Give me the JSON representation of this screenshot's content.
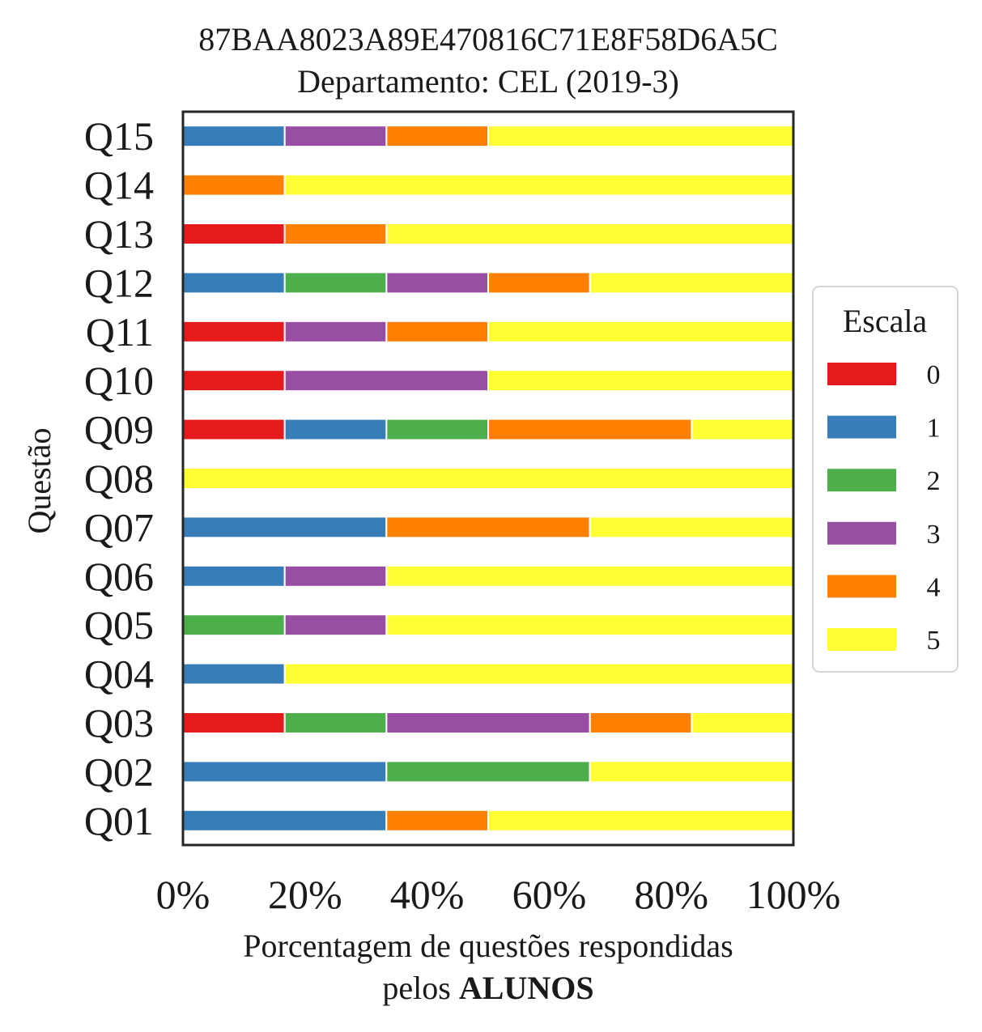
{
  "chart_data": {
    "type": "bar",
    "orientation": "horizontal",
    "stacked": true,
    "title_line1": "87BAA8023A89E470816C71E8F58D6A5C",
    "title_line2": "Departamento: CEL (2019-3)",
    "ylabel": "Questão",
    "xlabel_line1": "Porcentagem de questões respondidas",
    "xlabel_line2_prefix": "pelos ",
    "xlabel_line2_bold": "ALUNOS",
    "xlim": [
      0,
      100
    ],
    "xticks": [
      "0%",
      "20%",
      "40%",
      "60%",
      "80%",
      "100%"
    ],
    "xtick_values": [
      0,
      20,
      40,
      60,
      80,
      100
    ],
    "categories": [
      "Q01",
      "Q02",
      "Q03",
      "Q04",
      "Q05",
      "Q06",
      "Q07",
      "Q08",
      "Q09",
      "Q10",
      "Q11",
      "Q12",
      "Q13",
      "Q14",
      "Q15"
    ],
    "grid": false,
    "legend": {
      "title": "Escala",
      "placement": "right-center"
    },
    "series": [
      {
        "name": "0",
        "color": "#e41a1c",
        "values": [
          0,
          0,
          16.67,
          0,
          0,
          0,
          0,
          0,
          16.67,
          16.67,
          16.67,
          0,
          16.67,
          0,
          0
        ]
      },
      {
        "name": "1",
        "color": "#377eb8",
        "values": [
          33.33,
          33.33,
          0,
          16.67,
          0,
          16.67,
          33.33,
          0,
          16.67,
          0,
          0,
          16.67,
          0,
          0,
          16.67
        ]
      },
      {
        "name": "2",
        "color": "#4daf4a",
        "values": [
          0,
          33.33,
          16.67,
          0,
          16.67,
          0,
          0,
          0,
          16.67,
          0,
          0,
          16.67,
          0,
          0,
          0
        ]
      },
      {
        "name": "3",
        "color": "#984ea3",
        "values": [
          0,
          0,
          33.33,
          0,
          16.67,
          16.67,
          0,
          0,
          0,
          33.33,
          16.67,
          16.67,
          0,
          0,
          16.67
        ]
      },
      {
        "name": "4",
        "color": "#ff7f00",
        "values": [
          16.67,
          0,
          16.67,
          0,
          0,
          0,
          33.33,
          0,
          33.33,
          0,
          16.67,
          16.67,
          16.67,
          16.67,
          16.67
        ]
      },
      {
        "name": "5",
        "color": "#ffff33",
        "values": [
          50,
          33.33,
          16.67,
          83.33,
          66.67,
          66.67,
          33.33,
          100,
          16.67,
          50,
          50,
          33.33,
          66.67,
          83.33,
          50
        ]
      }
    ]
  }
}
